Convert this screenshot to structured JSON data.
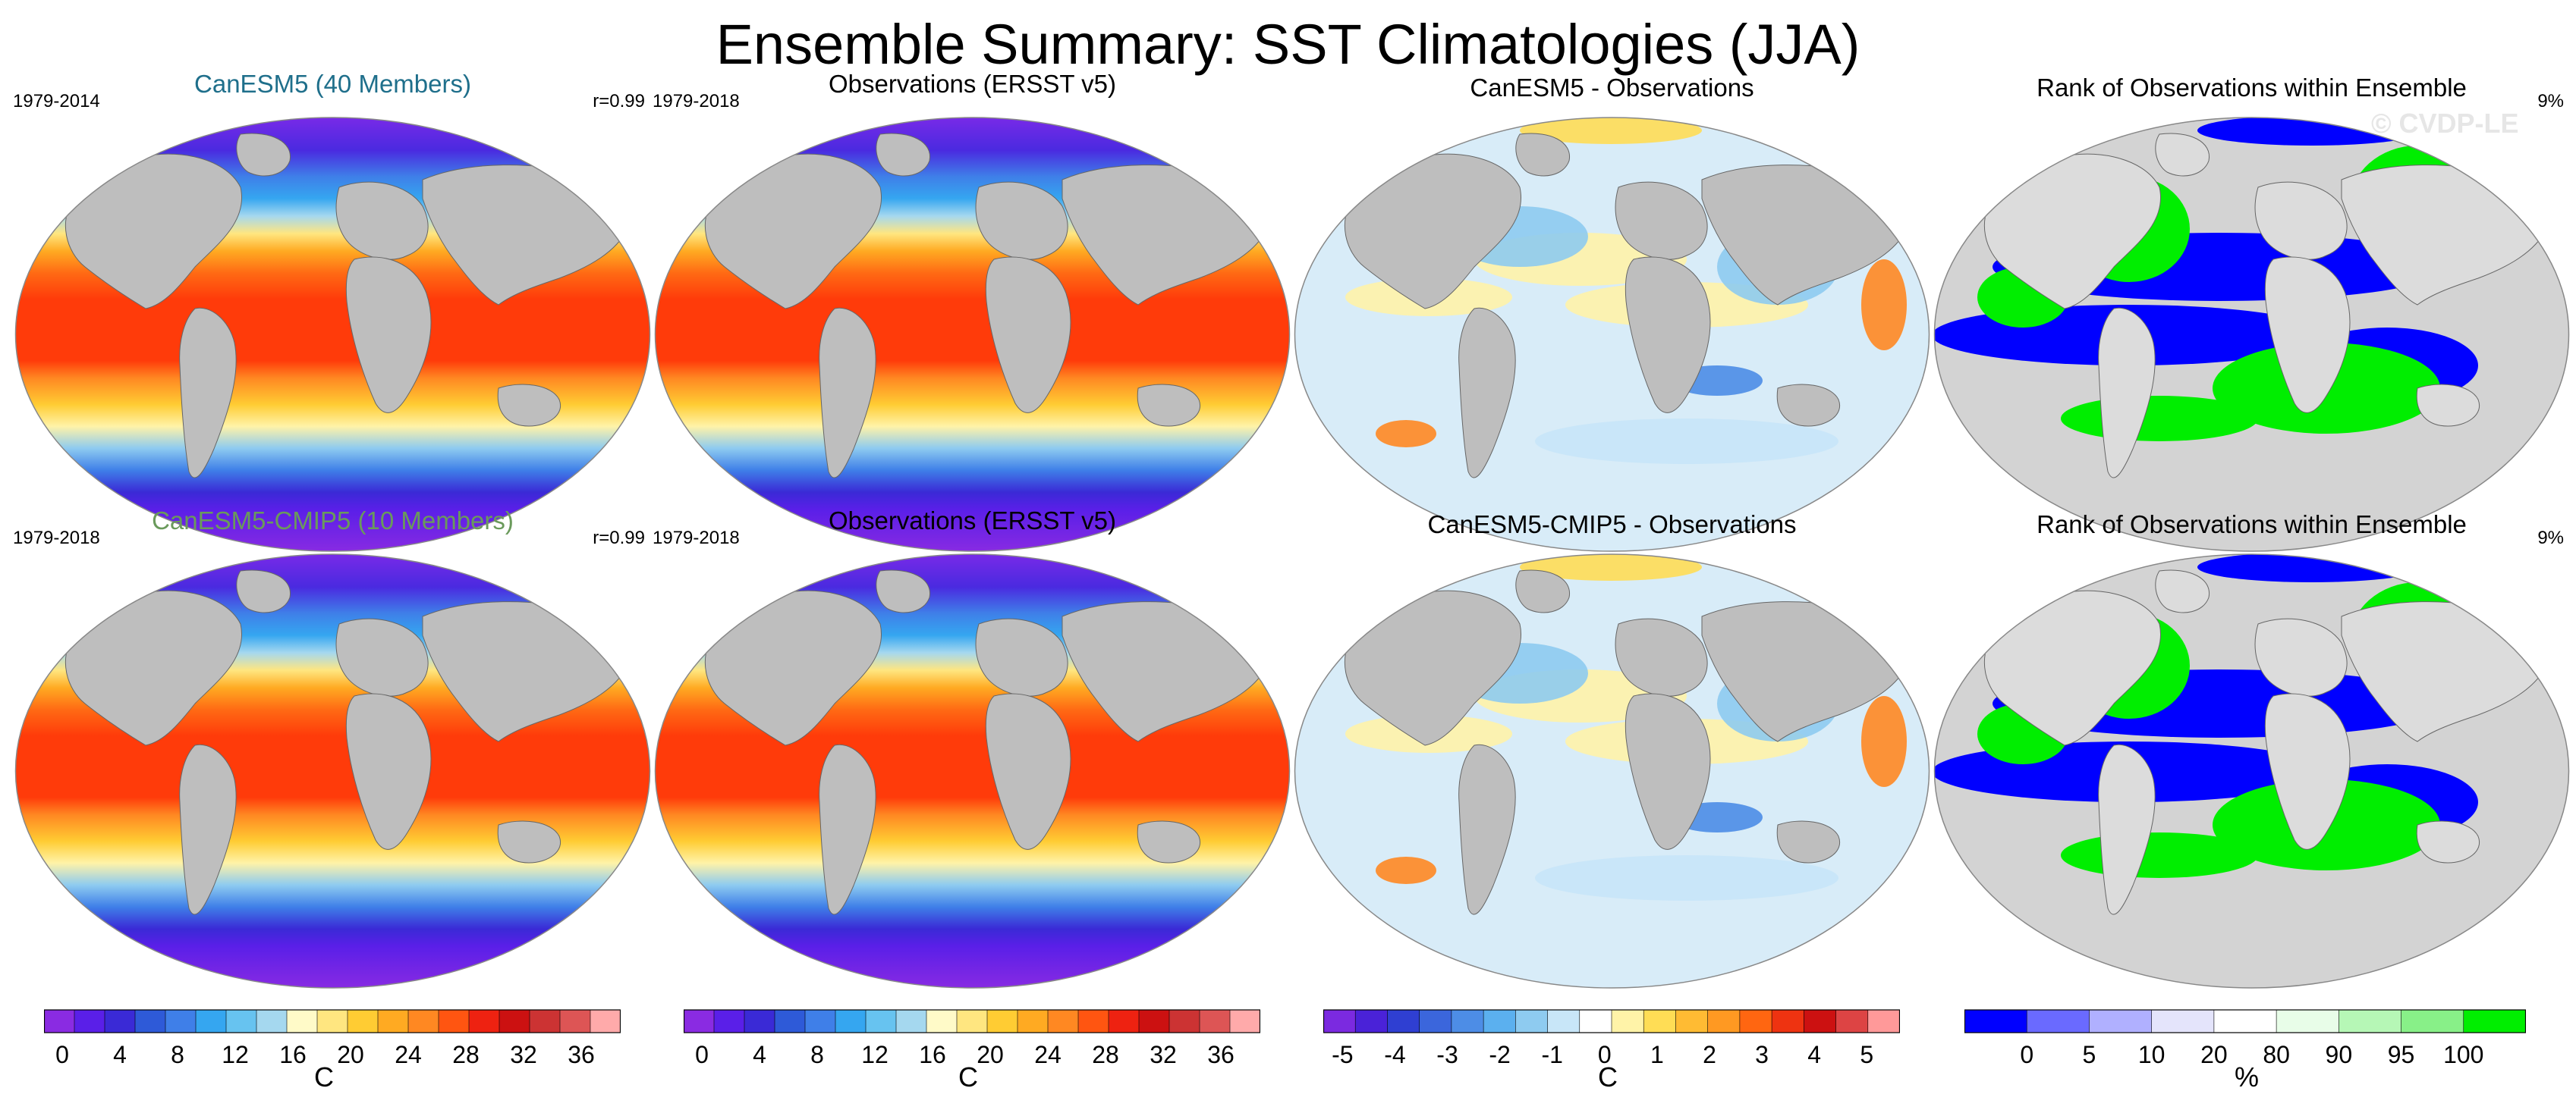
{
  "title": "Ensemble Summary: SST Climatologies (JJA)",
  "watermark": "© CVDP-LE",
  "panels": [
    {
      "title": "CanESM5 (40 Members)",
      "title_color": "#1f6f8b",
      "left": "1979-2014",
      "right": "r=0.99",
      "kind": "climo"
    },
    {
      "title": "Observations (ERSST v5)",
      "title_color": "#000000",
      "left": "1979-2018",
      "right": "",
      "kind": "climo"
    },
    {
      "title": "CanESM5 - Observations",
      "title_color": "#000000",
      "left": "",
      "right": "",
      "kind": "diff"
    },
    {
      "title": "Rank of Observations within Ensemble",
      "title_color": "#000000",
      "left": "",
      "right": "9%",
      "kind": "rank"
    },
    {
      "title": "CanESM5-CMIP5 (10 Members)",
      "title_color": "#6a9a5b",
      "left": "1979-2018",
      "right": "r=0.99",
      "kind": "climo"
    },
    {
      "title": "Observations (ERSST v5)",
      "title_color": "#000000",
      "left": "1979-2018",
      "right": "",
      "kind": "climo"
    },
    {
      "title": "CanESM5-CMIP5 - Observations",
      "title_color": "#000000",
      "left": "",
      "right": "",
      "kind": "diff"
    },
    {
      "title": "Rank of Observations within Ensemble",
      "title_color": "#000000",
      "left": "",
      "right": "9%",
      "kind": "rank"
    }
  ],
  "chart_data": {
    "type": "heatmap",
    "projection": "robinson",
    "colorbars": [
      {
        "unit": "C",
        "tick_labels": [
          "0",
          "4",
          "8",
          "12",
          "16",
          "20",
          "24",
          "28",
          "32",
          "36"
        ],
        "colors": [
          "#8a2be2",
          "#5a1fe8",
          "#3a2ad6",
          "#2e5ad8",
          "#3f7fe8",
          "#35a6f0",
          "#67c3f0",
          "#a5d8ef",
          "#fffac8",
          "#ffe680",
          "#ffcc33",
          "#ffaa22",
          "#ff8822",
          "#ff5511",
          "#ee2211",
          "#cc1111",
          "#cc3333",
          "#dd5555",
          "#ffaaaa"
        ]
      },
      {
        "unit": "C",
        "tick_labels": [
          "0",
          "4",
          "8",
          "12",
          "16",
          "20",
          "24",
          "28",
          "32",
          "36"
        ],
        "colors": [
          "#8a2be2",
          "#5a1fe8",
          "#3a2ad6",
          "#2e5ad8",
          "#3f7fe8",
          "#35a6f0",
          "#67c3f0",
          "#a5d8ef",
          "#fffac8",
          "#ffe680",
          "#ffcc33",
          "#ffaa22",
          "#ff8822",
          "#ff5511",
          "#ee2211",
          "#cc1111",
          "#cc3333",
          "#dd5555",
          "#ffaaaa"
        ]
      },
      {
        "unit": "C",
        "tick_labels": [
          "-5",
          "-4",
          "-3",
          "-2",
          "-1",
          "0",
          "1",
          "2",
          "3",
          "4",
          "5"
        ],
        "colors": [
          "#7b2ae0",
          "#4a22d8",
          "#2f3fd2",
          "#3b66dc",
          "#4d8de6",
          "#5bb0ef",
          "#8ecbf0",
          "#c8e6f8",
          "#ffffff",
          "#fff3a8",
          "#ffdd55",
          "#ffbb33",
          "#ff9922",
          "#ff6611",
          "#ee3311",
          "#cc1111",
          "#dd4444",
          "#ff9999"
        ]
      },
      {
        "unit": "%",
        "tick_labels": [
          "0",
          "5",
          "10",
          "20",
          "80",
          "90",
          "95",
          "100"
        ],
        "colors": [
          "#0000ff",
          "#6a6aff",
          "#b0b0ff",
          "#e4e4fb",
          "#ffffff",
          "#e8fde8",
          "#b6f7b6",
          "#88f088",
          "#00ee00"
        ]
      }
    ],
    "ranges": {
      "climo": [
        0,
        36
      ],
      "diff": [
        -5,
        5
      ],
      "rank": [
        0,
        100
      ]
    }
  }
}
